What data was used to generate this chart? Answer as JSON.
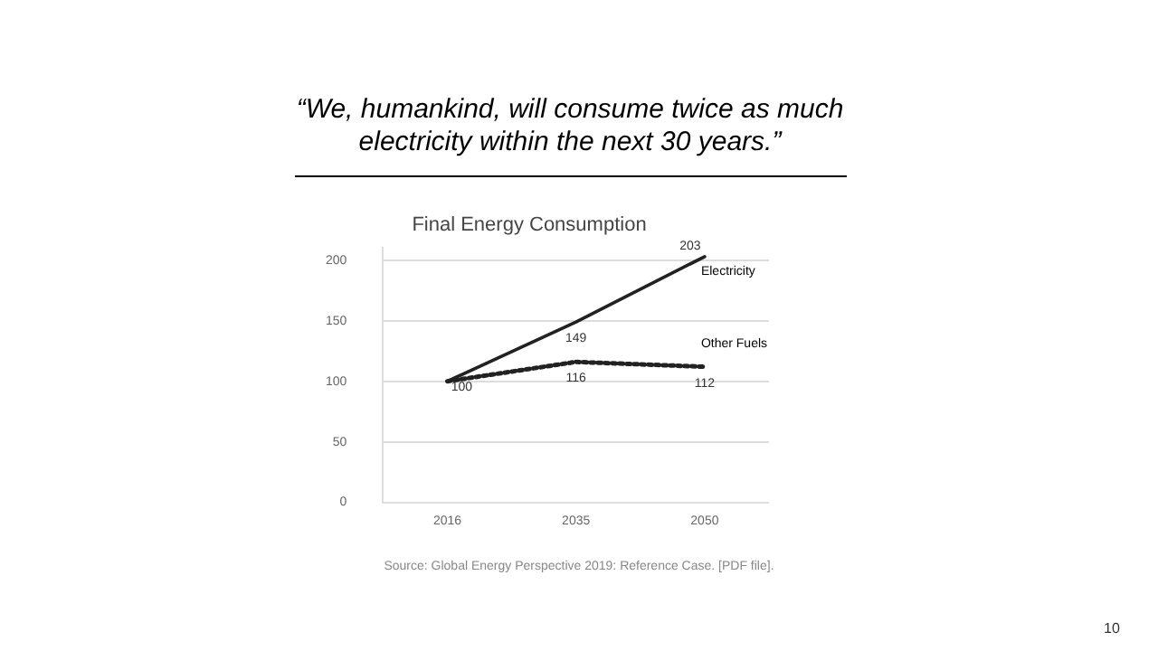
{
  "chart_data": {
    "type": "line",
    "title": "Final Energy Consumption",
    "annotations": [
      "“We, humankind, will consume twice as much electricity within the next 30 years.”",
      "Source: Global Energy Perspective 2019: Reference Case. [PDF file].",
      "10"
    ],
    "categories": [
      "2016",
      "2035",
      "2050"
    ],
    "series": [
      {
        "name": "Electricity",
        "color": "#222222",
        "line_style": "solid",
        "values": [
          100,
          149,
          203
        ],
        "value_labels": [
          null,
          "149",
          "203"
        ]
      },
      {
        "name": "Other Fuels",
        "color": "#222222",
        "line_style": "dotted",
        "values": [
          100,
          116,
          112
        ],
        "value_labels": [
          "100",
          "116",
          "112"
        ]
      }
    ],
    "ylim": [
      0,
      210
    ],
    "yticks": [
      0,
      50,
      100,
      150,
      200
    ],
    "grid": "y",
    "legend": false,
    "marker": "none"
  }
}
